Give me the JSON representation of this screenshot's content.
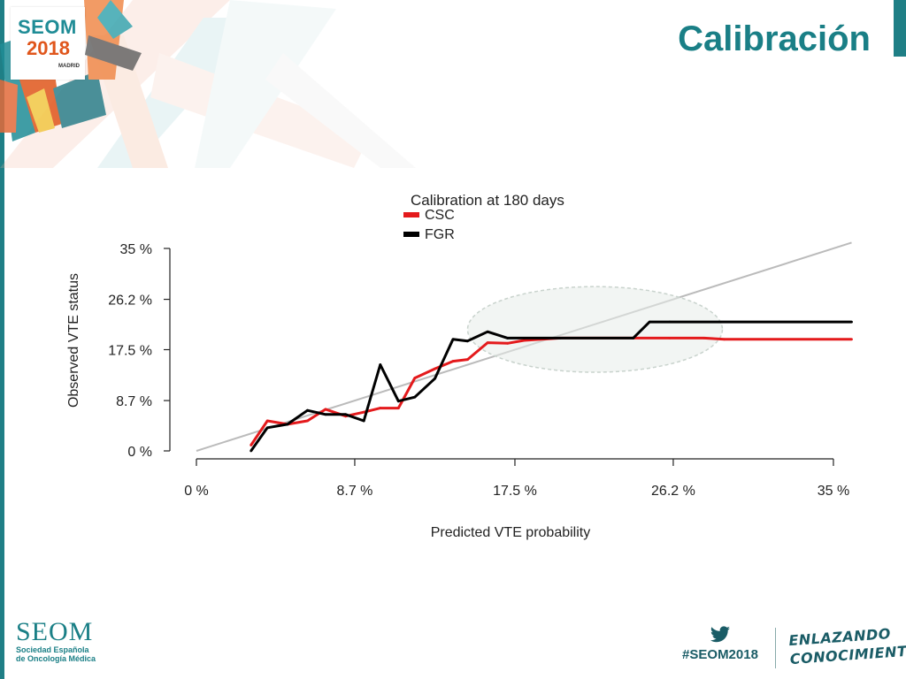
{
  "header": {
    "title": "Calibración",
    "logo_line1": "SEOM",
    "logo_line2": "2018",
    "logo_city": "MADRID"
  },
  "footer": {
    "org_name": "SEOM",
    "org_sub_1": "Sociedad Española",
    "org_sub_2": "de Oncología Médica",
    "hashtag": "#SEOM2018",
    "tagline_1": "ENLAZANDO",
    "tagline_2": "CONOCIMIENTO"
  },
  "colors": {
    "brand": "#1a7f86",
    "csc": "#e41a1c",
    "fgr": "#000000",
    "reference": "#bbbbbb",
    "highlight": "#c9d3cd"
  },
  "chart_data": {
    "type": "line",
    "title": "Calibration at 180 days",
    "xlabel": "Predicted VTE probability",
    "ylabel": "Observed VTE  status",
    "xlim": [
      0,
      35
    ],
    "ylim": [
      0,
      35
    ],
    "x_ticks": [
      0,
      8.7,
      17.5,
      26.2,
      35
    ],
    "x_tick_labels": [
      "0 %",
      "8.7 %",
      "17.5 %",
      "26.2 %",
      "35 %"
    ],
    "y_ticks": [
      0,
      8.7,
      17.5,
      26.2,
      35
    ],
    "y_tick_labels": [
      "0 %",
      "8.7 %",
      "17.5 %",
      "26.2 %",
      "35 %"
    ],
    "legend_position": "top-left",
    "reference_line": {
      "x": [
        0,
        36
      ],
      "y": [
        0,
        36
      ]
    },
    "highlight_ellipse": {
      "center": [
        21.9,
        21.0
      ],
      "radii": [
        7.0,
        7.4
      ]
    },
    "series": [
      {
        "name": "CSC",
        "x": [
          3.0,
          3.9,
          5.0,
          6.1,
          7.1,
          8.2,
          9.2,
          10.1,
          11.1,
          12.0,
          13.1,
          14.1,
          14.9,
          16.0,
          17.1,
          18.0,
          20.0,
          24.0,
          26.0,
          27.9,
          29.0,
          36.0
        ],
        "y": [
          1.0,
          5.2,
          4.6,
          5.2,
          7.2,
          6.0,
          6.7,
          7.4,
          7.4,
          12.6,
          14.2,
          15.5,
          15.8,
          18.7,
          18.6,
          19.1,
          19.5,
          19.5,
          19.5,
          19.5,
          19.3,
          19.3
        ]
      },
      {
        "name": "FGR",
        "x": [
          3.0,
          3.9,
          5.0,
          6.1,
          7.1,
          8.2,
          9.2,
          10.1,
          11.1,
          12.0,
          13.1,
          14.1,
          14.9,
          16.0,
          17.1,
          18.0,
          20.0,
          24.0,
          24.9,
          26.0,
          36.0
        ],
        "y": [
          0.0,
          4.0,
          4.6,
          7.0,
          6.3,
          6.3,
          5.2,
          14.9,
          8.6,
          9.3,
          12.5,
          19.3,
          19.0,
          20.6,
          19.5,
          19.5,
          19.5,
          19.5,
          22.3,
          22.3,
          22.3
        ]
      }
    ]
  }
}
